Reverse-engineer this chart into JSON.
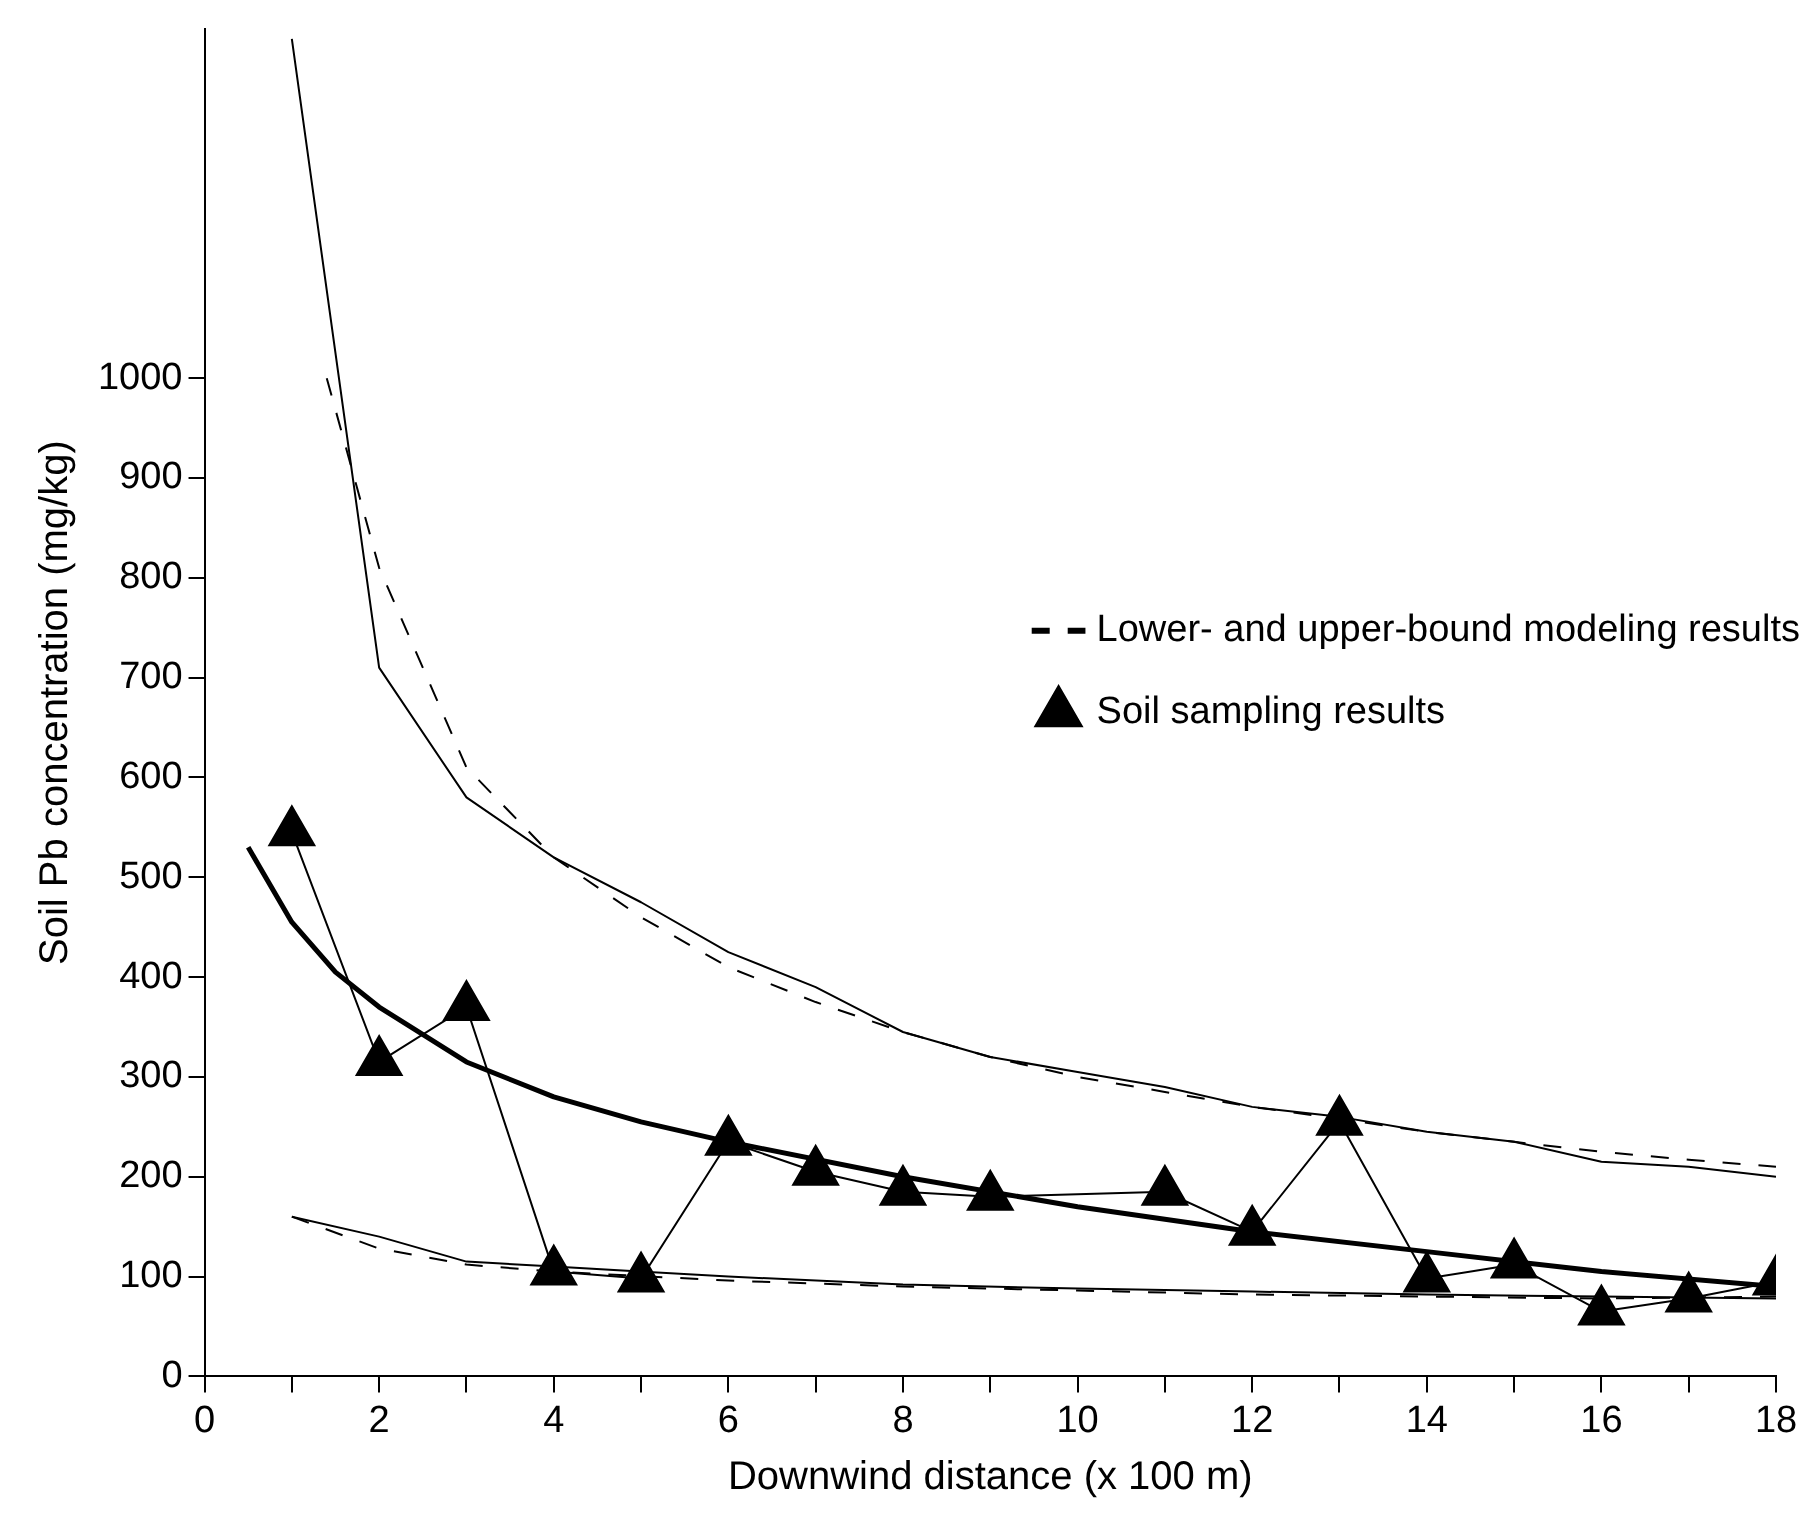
{
  "chart_data": {
    "type": "line",
    "xlabel": "Downwind distance (x 100 m)",
    "ylabel": "Soil Pb concentration (mg/kg)",
    "xlim": [
      0,
      18
    ],
    "xticks": [
      0,
      {
        "value": 1,
        "label": null
      },
      2,
      {
        "value": 3,
        "label": null
      },
      4,
      {
        "value": 5,
        "label": null
      },
      6,
      {
        "value": 7,
        "label": null
      },
      8,
      {
        "value": 9,
        "label": null
      },
      10,
      {
        "value": 11,
        "label": null
      },
      12,
      {
        "value": 13,
        "label": null
      },
      14,
      {
        "value": 15,
        "label": null
      },
      16,
      {
        "value": 17,
        "label": null
      },
      18
    ],
    "ylim": [
      0,
      1350
    ],
    "yticks": [
      0,
      100,
      200,
      300,
      400,
      500,
      600,
      700,
      800,
      900,
      1000
    ],
    "grid": false,
    "legend": "top right",
    "series": [
      {
        "name": "Lower- and upper-bound modeling results",
        "color": "#000000",
        "line_style": "dashed",
        "marker": "none",
        "x": [
          1.4,
          2,
          3,
          4,
          5,
          6,
          7,
          8,
          9,
          10,
          11,
          12,
          13,
          14,
          15,
          16,
          17,
          18
        ],
        "values": [
          1000,
          810,
          610,
          520,
          460,
          410,
          375,
          345,
          320,
          300,
          285,
          270,
          258,
          245,
          235,
          225,
          217,
          210
        ]
      },
      {
        "name": "Soil sampling results",
        "color": "#000000",
        "line_style": "solid",
        "marker": "triangle",
        "x": [
          1,
          2,
          3,
          4,
          5,
          6,
          7,
          8,
          9,
          11,
          12,
          13,
          14,
          15,
          16,
          17,
          18
        ],
        "values": [
          545,
          315,
          370,
          105,
          98,
          235,
          205,
          185,
          180,
          185,
          145,
          255,
          98,
          112,
          65,
          78,
          95
        ]
      },
      {
        "color": "#000000",
        "line_style": "dashed",
        "marker": "none",
        "x": [
          1,
          2,
          3,
          4,
          6,
          8,
          10,
          12,
          14,
          16,
          18
        ],
        "values": [
          160,
          128,
          112,
          105,
          96,
          90,
          86,
          82,
          80,
          78,
          80
        ]
      },
      {
        "color": "#000000",
        "line_style": "solid",
        "marker": "none",
        "x": [
          1,
          2,
          3,
          4,
          5,
          6,
          7,
          8,
          9,
          10,
          11,
          12,
          13,
          14,
          15,
          16,
          17,
          18
        ],
        "values": [
          1340,
          710,
          580,
          520,
          475,
          425,
          390,
          345,
          320,
          305,
          290,
          270,
          260,
          245,
          235,
          215,
          210,
          200
        ]
      },
      {
        "color": "#000000",
        "line_style": "solid",
        "marker": "none",
        "x": [
          1,
          2,
          3,
          4,
          6,
          8,
          10,
          12,
          14,
          16,
          18
        ],
        "values": [
          160,
          140,
          115,
          110,
          100,
          92,
          88,
          85,
          82,
          80,
          78
        ]
      },
      {
        "color": "#000000",
        "line_style": "solid",
        "marker": "none",
        "x": [
          0.5,
          1,
          1.5,
          2,
          3,
          4,
          5,
          6,
          8,
          10,
          12,
          14,
          16,
          18
        ],
        "values": [
          530,
          455,
          405,
          370,
          315,
          280,
          255,
          235,
          200,
          170,
          145,
          125,
          105,
          90
        ]
      }
    ]
  }
}
